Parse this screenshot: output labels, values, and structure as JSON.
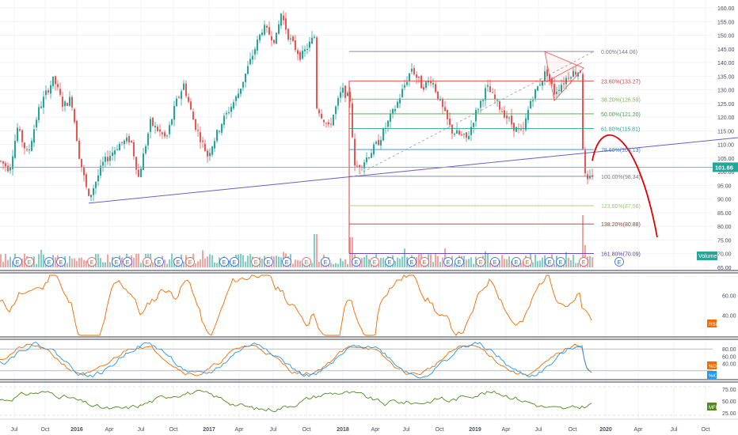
{
  "chart_data": {
    "type": "candlestick",
    "main": {
      "y_ticks": [
        "160.00",
        "155.00",
        "150.00",
        "145.00",
        "140.00",
        "135.00",
        "130.00",
        "125.00",
        "120.00",
        "115.00",
        "110.00",
        "105.00",
        "100.00",
        "95.00",
        "90.00",
        "85.00",
        "80.00",
        "75.00",
        "70.00",
        "65.00"
      ],
      "ylim": [
        64,
        162
      ],
      "last_price": "101.66",
      "volume_label": "Volume",
      "colors": {
        "up": "#26a69a",
        "down": "#ef5350",
        "vol_up": "#7fcfc6",
        "vol_down": "#f4a3a1"
      },
      "fib_levels": [
        {
          "label": "0.00%(144.06)",
          "value": 144.06,
          "color": "#787b86"
        },
        {
          "label": "23.60%(133.27)",
          "value": 133.27,
          "color": "#e53935"
        },
        {
          "label": "38.20%(126.59)",
          "value": 126.59,
          "color": "#7cb342"
        },
        {
          "label": "50.00%(121.20)",
          "value": 121.2,
          "color": "#43a047"
        },
        {
          "label": "61.80%(115.81)",
          "value": 115.81,
          "color": "#26a69a"
        },
        {
          "label": "78.60%(108.13)",
          "value": 108.13,
          "color": "#1e88e5"
        },
        {
          "label": "100.00%(98.34)",
          "value": 98.34,
          "color": "#787b86"
        },
        {
          "label": "123.60%(87.56)",
          "value": 87.56,
          "color": "#9ccc65"
        },
        {
          "label": "138.20%(80.88)",
          "value": 80.88,
          "color": "#c62828"
        },
        {
          "label": "161.80%(70.09)",
          "value": 70.09,
          "color": "#5e35b1"
        }
      ],
      "earnings_marker": "E"
    },
    "x_ticks": [
      "Jul",
      "Oct",
      "2016",
      "Apr",
      "Jul",
      "Oct",
      "2017",
      "Apr",
      "Jul",
      "Oct",
      "2018",
      "Apr",
      "Jul",
      "Oct",
      "2019",
      "Apr",
      "Jul",
      "Oct",
      "2020",
      "Apr",
      "Jul",
      "Oct"
    ],
    "rsi": {
      "label": "RSI",
      "y_ticks": [
        "60.00",
        "40.00"
      ],
      "color": "#ef6c00"
    },
    "stoch": {
      "labels": [
        "%D",
        "%K"
      ],
      "y_ticks": [
        "80.00",
        "60.00",
        "40.00"
      ],
      "colors": [
        "#ef6c00",
        "#2196f3"
      ]
    },
    "mfi": {
      "label": "MFI",
      "y_ticks": [
        "75.00",
        "50.00",
        "25.00"
      ],
      "color": "#4e8a1a"
    }
  }
}
